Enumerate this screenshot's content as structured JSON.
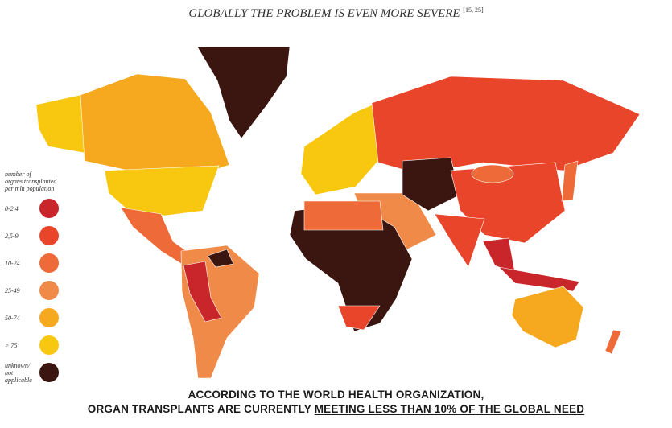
{
  "title": "GLOBALLY THE PROBLEM IS EVEN MORE SEVERE",
  "citation": "[15, 25]",
  "legend": {
    "title": [
      "number of",
      "organs transplanted",
      "per mln population"
    ],
    "items": [
      {
        "label": "0-2,4",
        "color": "#c8262b"
      },
      {
        "label": "2,5-9",
        "color": "#e8452a"
      },
      {
        "label": "10-24",
        "color": "#ee6a38"
      },
      {
        "label": "25-49",
        "color": "#f08a48"
      },
      {
        "label": "50-74",
        "color": "#f6a81e"
      },
      {
        "label": "> 75",
        "color": "#f8c710"
      },
      {
        "label": "unknown/ not applicable",
        "color": "#3b1610"
      }
    ]
  },
  "footer": {
    "line1": "ACCORDING TO THE WORLD HEALTH ORGANIZATION,",
    "line2_prefix": "ORGAN TRANSPLANTS ARE CURRENTLY",
    "line2_underlined": "MEETING LESS THAN 10% OF THE GLOBAL NEED"
  }
}
